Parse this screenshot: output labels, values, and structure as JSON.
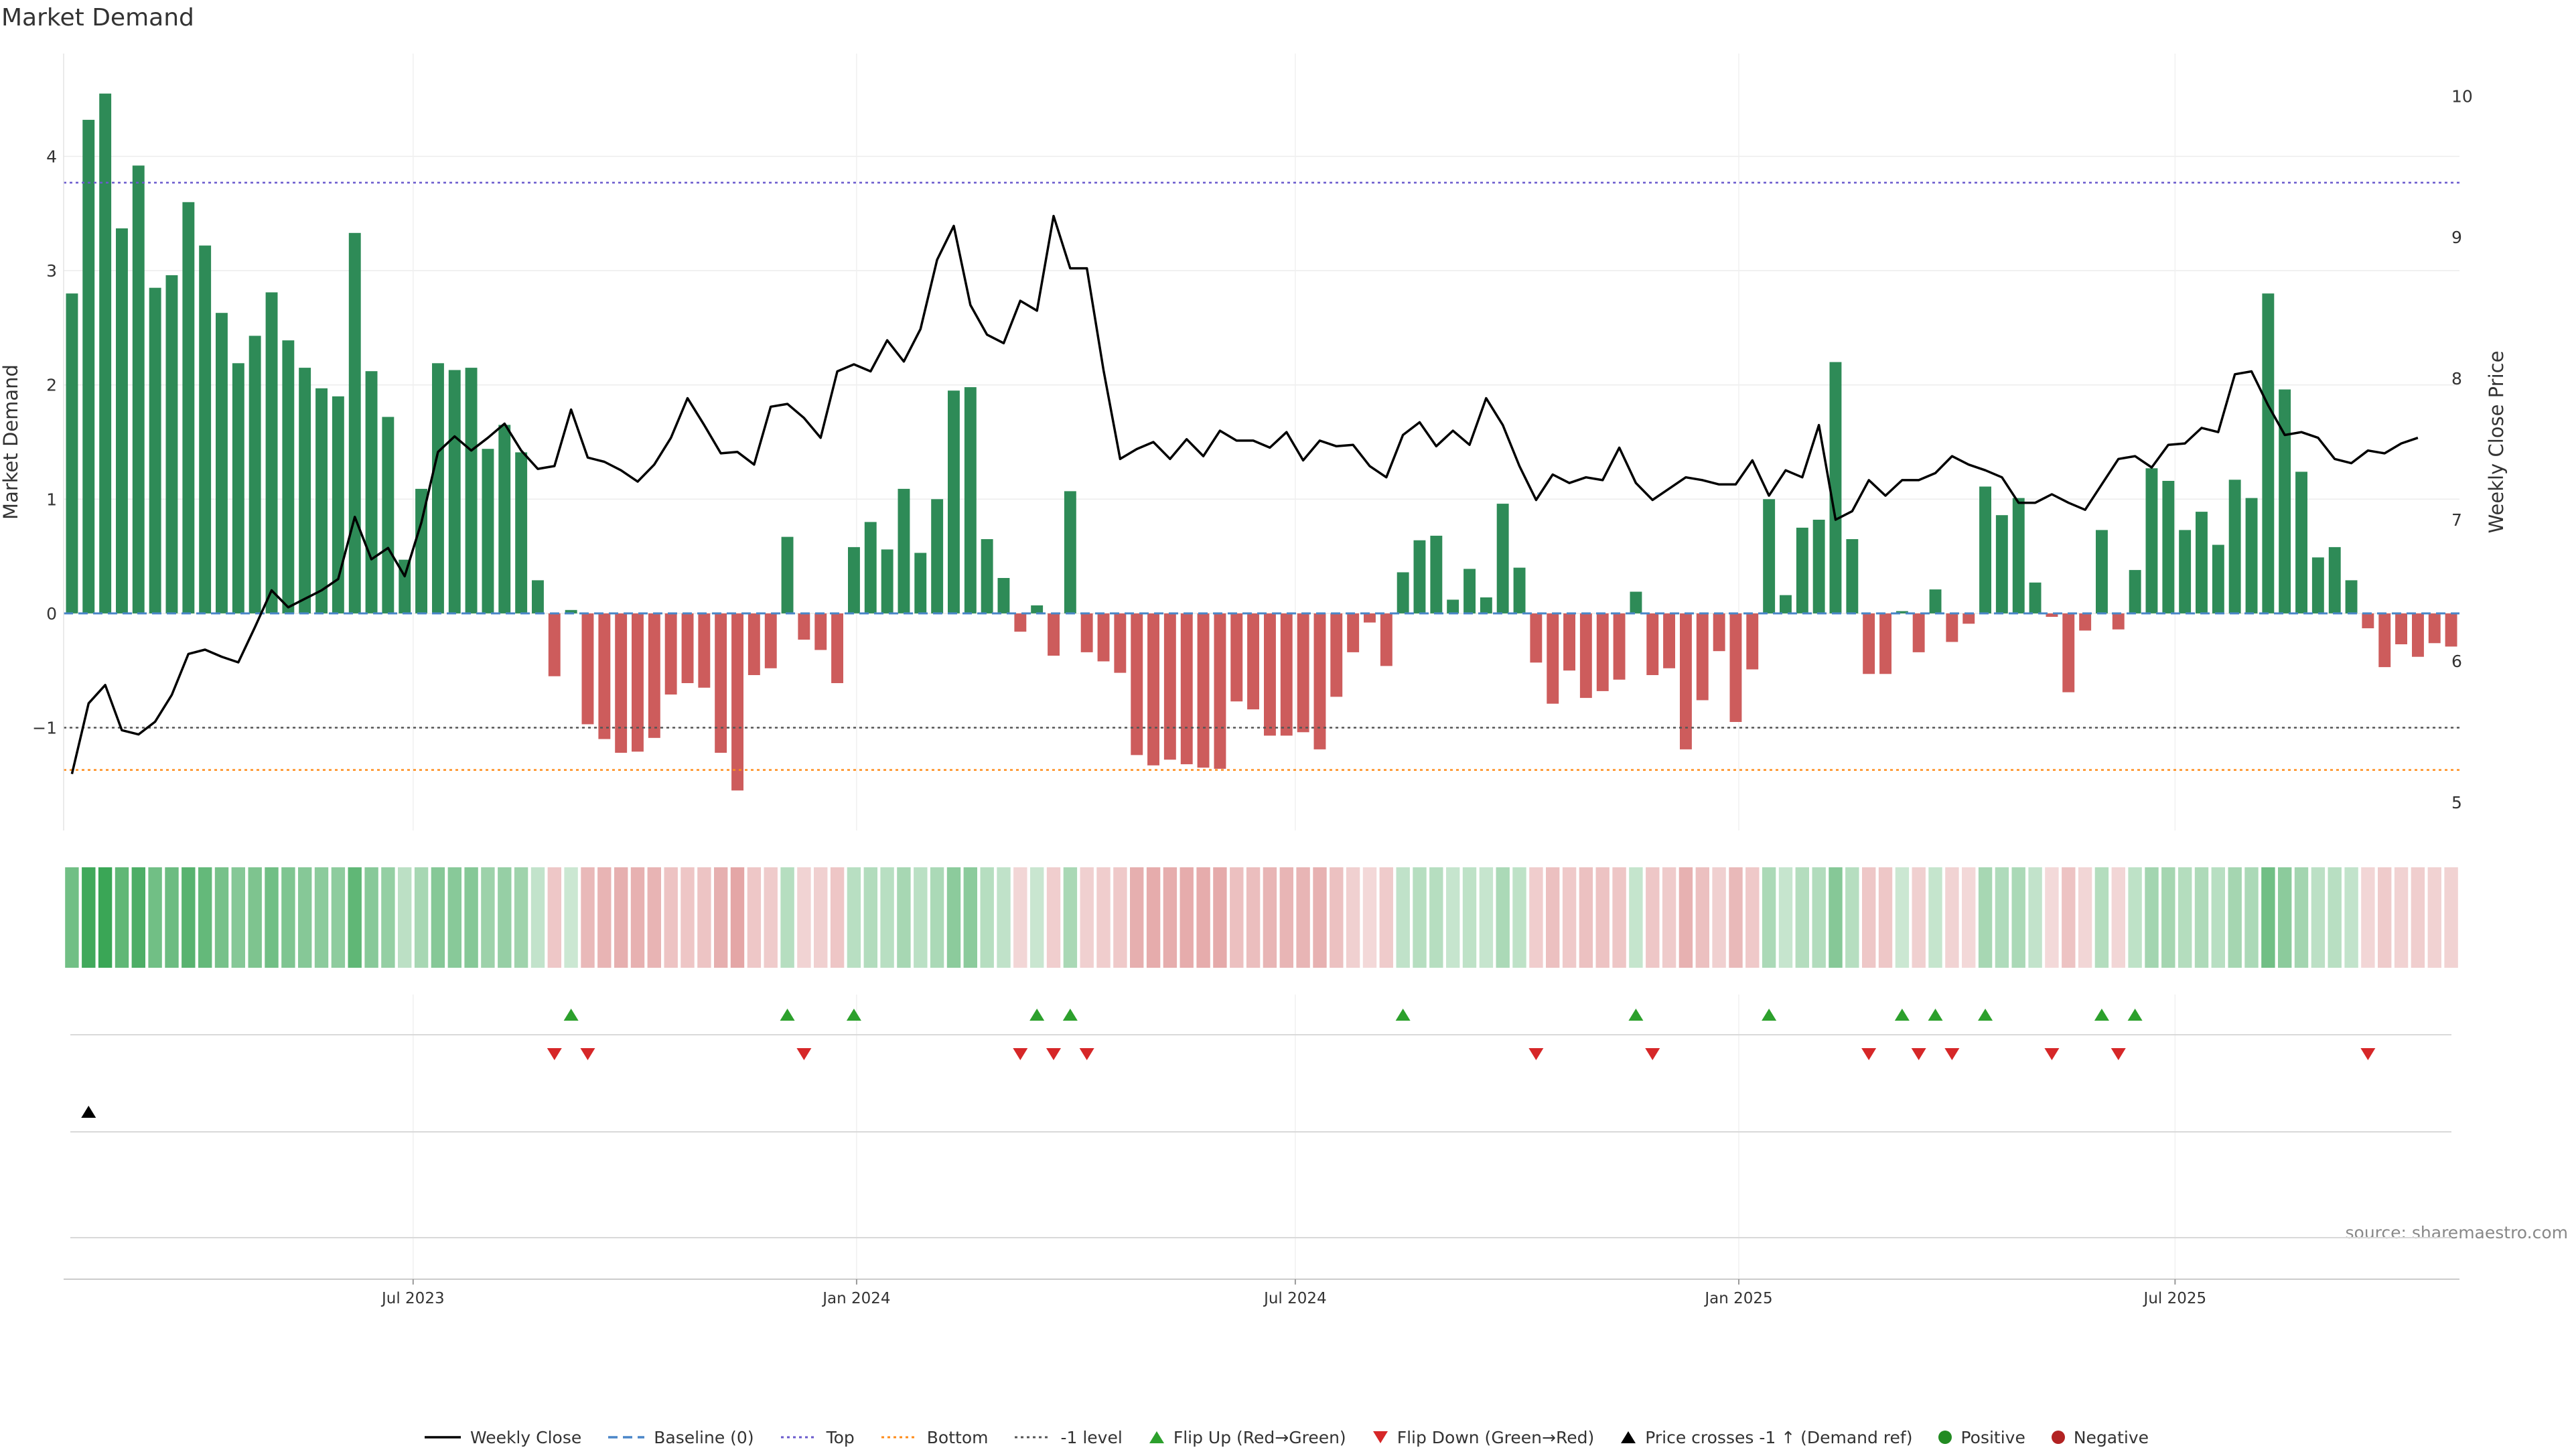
{
  "chart_data": {
    "type": "bar",
    "title": "Market Demand",
    "ylabel": "Market Demand",
    "y2label": "Weekly Close Price",
    "ylim": [
      -1.9,
      4.9
    ],
    "y2lim": [
      4.8,
      10.3
    ],
    "yticks": [
      -1,
      0,
      1,
      2,
      3,
      4
    ],
    "yticklabels": [
      "−1",
      "0",
      "1",
      "2",
      "3",
      "4"
    ],
    "y2ticks": [
      5,
      6,
      7,
      8,
      9,
      10
    ],
    "y2ticklabels": [
      "5",
      "6",
      "7",
      "8",
      "9",
      "10"
    ],
    "x_start": "2023-02-06",
    "x_end": "2025-10-27",
    "xticks": [
      {
        "date": "2023-07-01",
        "label": "Jul 2023"
      },
      {
        "date": "2024-01-01",
        "label": "Jan 2024"
      },
      {
        "date": "2024-07-01",
        "label": "Jul 2024"
      },
      {
        "date": "2025-01-01",
        "label": "Jan 2025"
      },
      {
        "date": "2025-07-01",
        "label": "Jul 2025"
      }
    ],
    "reference_lines": {
      "baseline": 0,
      "top": 3.77,
      "bottom": -1.37,
      "minus_one_level": -1
    },
    "demand": [
      2.8,
      4.32,
      4.55,
      3.37,
      3.92,
      2.85,
      2.96,
      3.6,
      3.22,
      2.63,
      2.19,
      2.43,
      2.81,
      2.39,
      2.15,
      1.97,
      1.9,
      3.33,
      2.12,
      1.72,
      0.47,
      1.09,
      2.19,
      2.13,
      2.15,
      1.44,
      1.65,
      1.41,
      0.29,
      -0.55,
      0.03,
      -0.97,
      -1.1,
      -1.22,
      -1.21,
      -1.09,
      -0.71,
      -0.61,
      -0.65,
      -1.22,
      -1.55,
      -0.54,
      -0.48,
      0.67,
      -0.23,
      -0.32,
      -0.61,
      0.58,
      0.8,
      0.56,
      1.09,
      0.53,
      1.0,
      1.95,
      1.98,
      0.65,
      0.31,
      -0.16,
      0.07,
      -0.37,
      1.07,
      -0.34,
      -0.42,
      -0.52,
      -1.24,
      -1.33,
      -1.28,
      -1.32,
      -1.35,
      -1.36,
      -0.77,
      -0.84,
      -1.07,
      -1.07,
      -1.04,
      -1.19,
      -0.73,
      -0.34,
      -0.08,
      -0.46,
      0.36,
      0.64,
      0.68,
      0.12,
      0.39,
      0.14,
      0.96,
      0.4,
      -0.43,
      -0.79,
      -0.5,
      -0.74,
      -0.68,
      -0.58,
      0.19,
      -0.54,
      -0.48,
      -1.19,
      -0.76,
      -0.33,
      -0.95,
      -0.49,
      1.0,
      0.16,
      0.75,
      0.82,
      2.2,
      0.65,
      -0.53,
      -0.53,
      0.02,
      -0.34,
      0.21,
      -0.25,
      -0.09,
      1.11,
      0.86,
      1.01,
      0.27,
      -0.03,
      -0.69,
      -0.15,
      0.73,
      -0.14,
      0.38,
      1.27,
      1.16,
      0.73,
      0.89,
      0.6,
      1.17,
      1.01,
      2.8,
      1.96,
      1.24,
      0.49,
      0.58,
      0.29,
      -0.13,
      -0.47,
      -0.27,
      -0.38,
      -0.26,
      -0.29
    ],
    "close": [
      5.2,
      5.7,
      5.83,
      5.51,
      5.48,
      5.57,
      5.76,
      6.05,
      6.08,
      6.03,
      5.99,
      6.24,
      6.5,
      6.38,
      6.44,
      6.5,
      6.58,
      7.02,
      6.72,
      6.8,
      6.6,
      6.98,
      7.48,
      7.59,
      7.49,
      7.58,
      7.68,
      7.49,
      7.36,
      7.38,
      7.78,
      7.44,
      7.41,
      7.35,
      7.27,
      7.39,
      7.58,
      7.86,
      7.67,
      7.47,
      7.48,
      7.39,
      7.8,
      7.82,
      7.72,
      7.58,
      8.05,
      8.1,
      8.05,
      8.27,
      8.12,
      8.35,
      8.84,
      9.08,
      8.52,
      8.31,
      8.25,
      8.55,
      8.48,
      9.15,
      8.78,
      8.78,
      8.06,
      7.43,
      7.5,
      7.55,
      7.43,
      7.57,
      7.45,
      7.63,
      7.56,
      7.56,
      7.51,
      7.62,
      7.42,
      7.56,
      7.52,
      7.53,
      7.38,
      7.3,
      7.6,
      7.69,
      7.52,
      7.63,
      7.53,
      7.86,
      7.67,
      7.38,
      7.14,
      7.32,
      7.26,
      7.3,
      7.28,
      7.51,
      7.26,
      7.14,
      7.22,
      7.3,
      7.28,
      7.25,
      7.25,
      7.42,
      7.17,
      7.35,
      7.3,
      7.67,
      7.0,
      7.06,
      7.28,
      7.17,
      7.28,
      7.28,
      7.33,
      7.45,
      7.39,
      7.35,
      7.3,
      7.12,
      7.12,
      7.18,
      7.12,
      7.07,
      7.25,
      7.43,
      7.45,
      7.37,
      7.53,
      7.54,
      7.65,
      7.62,
      8.03,
      8.05,
      7.81,
      7.6,
      7.62,
      7.58,
      7.43,
      7.4,
      7.49,
      7.47,
      7.54,
      7.58
    ],
    "flip_up_idx": [
      30,
      43,
      47,
      58,
      60,
      80,
      94,
      102,
      110,
      112,
      115,
      122,
      124
    ],
    "flip_down_idx": [
      29,
      31,
      44,
      57,
      59,
      61,
      88,
      95,
      108,
      111,
      113,
      119,
      123,
      138
    ],
    "price_cross_idx": [
      1
    ],
    "source_text": "source: sharemaestro.com",
    "colors": {
      "positive_bar": "#2e8b57",
      "negative_bar": "#cd5c5c",
      "price_line": "#000000",
      "baseline": "#4a86c8",
      "top_line": "#6a5acd",
      "bottom_line": "#ff8c1a",
      "minus_one_line": "#555555",
      "flip_up": "#2ca02c",
      "flip_down": "#d62728",
      "positive_dot": "#228b22",
      "negative_dot": "#b22222"
    }
  },
  "legend": [
    {
      "key": "weekly_close",
      "label": "Weekly Close",
      "icon": "solid-line-icon"
    },
    {
      "key": "baseline",
      "label": "Baseline (0)",
      "icon": "dashed-line-icon"
    },
    {
      "key": "top",
      "label": "Top",
      "icon": "dotted-line-icon"
    },
    {
      "key": "bottom",
      "label": "Bottom",
      "icon": "dotted-line-icon"
    },
    {
      "key": "minus_one",
      "label": "-1 level",
      "icon": "dotted-line-icon"
    },
    {
      "key": "flip_up",
      "label": "Flip Up (Red→Green)",
      "icon": "triangle-up-icon"
    },
    {
      "key": "flip_down",
      "label": "Flip Down (Green→Red)",
      "icon": "triangle-down-icon"
    },
    {
      "key": "price_cross",
      "label": "Price crosses -1 ↑ (Demand ref)",
      "icon": "triangle-up-icon"
    },
    {
      "key": "positive",
      "label": "Positive",
      "icon": "circle-icon"
    },
    {
      "key": "negative",
      "label": "Negative",
      "icon": "circle-icon"
    }
  ]
}
